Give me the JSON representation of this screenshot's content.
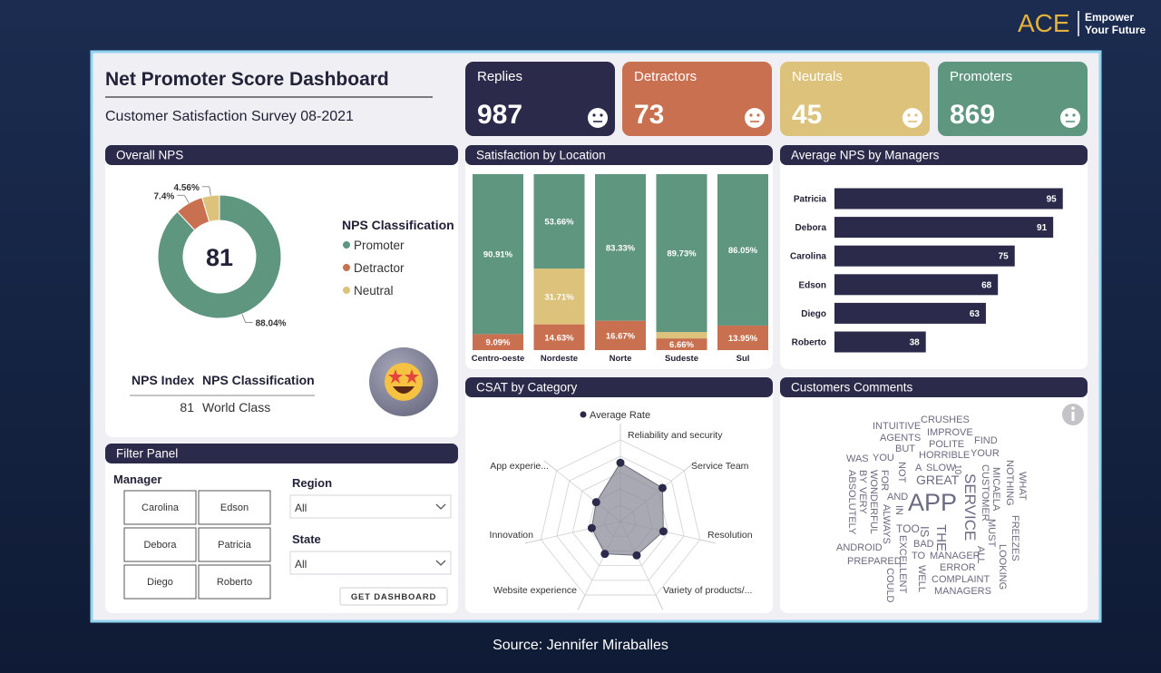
{
  "brand": {
    "logo": "ACE",
    "tagline": [
      "Empower",
      "Your Future"
    ]
  },
  "header": {
    "title": "Net Promoter Score Dashboard",
    "subtitle": "Customer Satisfaction Survey 08-2021"
  },
  "kpis": [
    {
      "label": "Replies",
      "value": 987,
      "color": "#2b2a4a"
    },
    {
      "label": "Detractors",
      "value": 73,
      "color": "#c8704f"
    },
    {
      "label": "Neutrals",
      "value": 45,
      "color": "#dcc27a"
    },
    {
      "label": "Promoters",
      "value": 869,
      "color": "#5e9680"
    }
  ],
  "chart_data": [
    {
      "type": "pie",
      "title": "Overall NPS",
      "center_label": 81,
      "legend_title": "NPS Classification",
      "categories": [
        "Promoter",
        "Detractor",
        "Neutral"
      ],
      "values": [
        88.04,
        7.4,
        4.56
      ],
      "value_labels": [
        "88.04%",
        "7.4%",
        "4.56%"
      ],
      "colors": [
        "#5e9680",
        "#c8704f",
        "#dcc27a"
      ]
    },
    {
      "type": "stacked_bar",
      "title": "Satisfaction by Location",
      "categories": [
        "Centro-oeste",
        "Nordeste",
        "Norte",
        "Sudeste",
        "Sul"
      ],
      "ylim": [
        0,
        100
      ],
      "series": [
        {
          "color": "#c8704f",
          "values": [
            9.09,
            14.63,
            16.67,
            6.66,
            13.95
          ],
          "value_labels": [
            "9.09%",
            "14.63%",
            "16.67%",
            "6.66%",
            "13.95%"
          ]
        },
        {
          "color": "#dcc27a",
          "values": [
            null,
            31.71,
            null,
            3.61,
            null
          ],
          "value_labels": [
            null,
            "31.71%",
            null,
            null,
            null
          ]
        },
        {
          "color": "#5e9680",
          "values": [
            90.91,
            53.66,
            83.33,
            89.73,
            86.05
          ],
          "value_labels": [
            "90.91%",
            "53.66%",
            "83.33%",
            "89.73%",
            "86.05%"
          ]
        }
      ]
    },
    {
      "type": "hbar",
      "title": "Average NPS by Managers",
      "categories": [
        "Patricia",
        "Debora",
        "Carolina",
        "Edson",
        "Diego",
        "Roberto"
      ],
      "values": [
        95,
        91,
        75,
        68,
        63,
        38
      ],
      "color": "#2b2a4a",
      "xlim": [
        0,
        100
      ]
    },
    {
      "type": "radar",
      "title": "CSAT by Category",
      "categories": [
        "Reliability and security",
        "Service Team",
        "Resolution",
        "Variety of products/...",
        "Website experience",
        "Innovation",
        "App experie..."
      ],
      "rlim": [
        0,
        5
      ],
      "series": [
        {
          "name": "Average Rate",
          "color": "#2b2a4a",
          "values": [
            3.6,
            3.3,
            2.7,
            2.3,
            2.2,
            1.8,
            1.9
          ]
        }
      ]
    }
  ],
  "nps_table": {
    "headers": [
      "NPS Index",
      "NPS Classification"
    ],
    "rows": [
      [
        81,
        "World Class"
      ]
    ]
  },
  "filter_panel": {
    "title": "Filter Panel",
    "manager_label": "Manager",
    "managers": [
      "Carolina",
      "Edson",
      "Debora",
      "Patricia",
      "Diego",
      "Roberto"
    ],
    "region_label": "Region",
    "region_value": "All",
    "state_label": "State",
    "state_value": "All",
    "button": "GET DASHBOARD"
  },
  "comments": {
    "title": "Customers Comments",
    "words": [
      "INTUITIVE",
      "CRUSHES",
      "AGENTS",
      "IMPROVE",
      "BUT",
      "POLITE",
      "FIND",
      "WAS",
      "YOU",
      "HORRIBLE",
      "YOUR",
      "A",
      "SLOW",
      "NOT",
      "10",
      "GREAT",
      "SERVICE",
      "MICAELA",
      "CUSTOMER",
      "NOTHING",
      "WHAT",
      "ABSOLUTELY",
      "BY",
      "VERY",
      "WONDERFUL",
      "FOR",
      "ALWAYS",
      "AND",
      "IN",
      "APP",
      "TOO",
      "IS",
      "THE",
      "BAD",
      "MUST",
      "ALL",
      "FREEZES",
      "ANDROID",
      "EXCELLENT",
      "TO",
      "MANAGER",
      "PREPARED",
      "COULD",
      "WELL",
      "ERROR",
      "LOOKING",
      "COMPLAINT",
      "MANAGERS"
    ]
  },
  "source": "Source: Jennifer Miraballes"
}
